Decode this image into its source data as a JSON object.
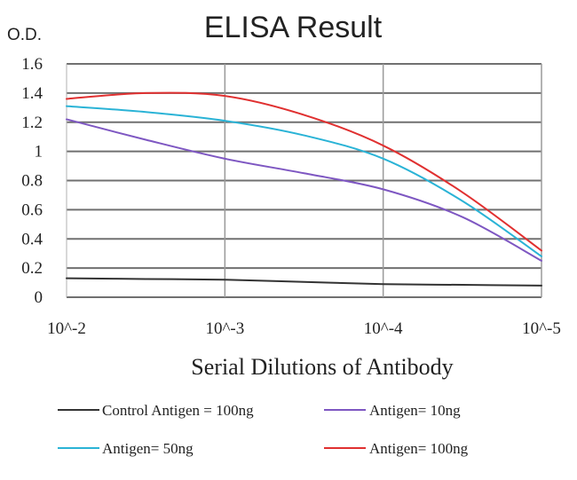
{
  "chart_data": {
    "type": "line",
    "title": "ELISA Result",
    "ylabel": "O.D.",
    "xlabel": "Serial Dilutions of Antibody",
    "x": [
      "10^-2",
      "10^-3",
      "10^-4",
      "10^-5"
    ],
    "ylim": [
      0,
      1.6
    ],
    "yticks": [
      "0",
      "0.2",
      "0.4",
      "0.6",
      "0.8",
      "1",
      "1.2",
      "1.4",
      "1.6"
    ],
    "grid": true,
    "legend_position": "bottom",
    "series": [
      {
        "name": "Control Antigen = 100ng",
        "color": "#333333",
        "points": [
          [
            0,
            0.13
          ],
          [
            0.5,
            0.125
          ],
          [
            1,
            0.12
          ],
          [
            1.5,
            0.105
          ],
          [
            2,
            0.09
          ],
          [
            2.5,
            0.085
          ],
          [
            3,
            0.08
          ]
        ]
      },
      {
        "name": "Antigen= 10ng",
        "color": "#7e57c2",
        "points": [
          [
            0,
            1.22
          ],
          [
            0.5,
            1.08
          ],
          [
            1,
            0.95
          ],
          [
            1.5,
            0.85
          ],
          [
            2,
            0.74
          ],
          [
            2.5,
            0.55
          ],
          [
            3,
            0.25
          ]
        ]
      },
      {
        "name": "Antigen= 50ng",
        "color": "#2ab3d6",
        "points": [
          [
            0,
            1.31
          ],
          [
            0.5,
            1.27
          ],
          [
            1,
            1.21
          ],
          [
            1.5,
            1.11
          ],
          [
            2,
            0.95
          ],
          [
            2.5,
            0.66
          ],
          [
            3,
            0.28
          ]
        ]
      },
      {
        "name": "Antigen= 100ng",
        "color": "#e03030",
        "points": [
          [
            0,
            1.36
          ],
          [
            0.5,
            1.4
          ],
          [
            1,
            1.38
          ],
          [
            1.5,
            1.25
          ],
          [
            2,
            1.04
          ],
          [
            2.5,
            0.72
          ],
          [
            3,
            0.32
          ]
        ]
      }
    ]
  }
}
